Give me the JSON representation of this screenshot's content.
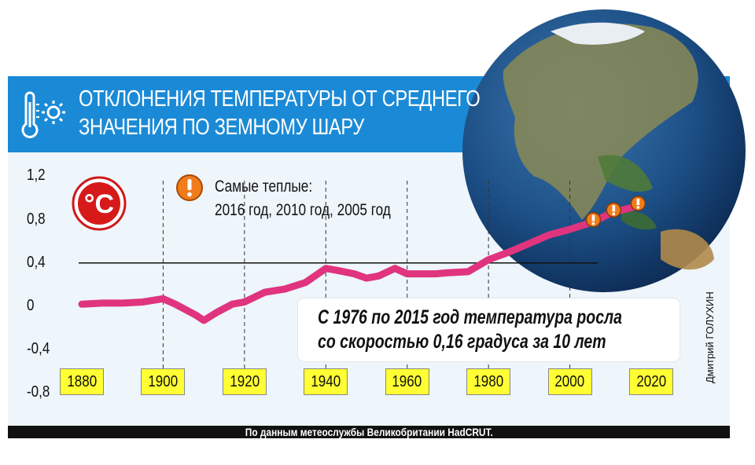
{
  "title_lines": [
    "ОТКЛОНЕНИЯ ТЕМПЕРАТУРЫ ОТ СРЕДНЕГО",
    "ЗНАЧЕНИЯ ПО ЗЕМНОМУ ШАРУ"
  ],
  "unit_badge": "°C",
  "warmest": {
    "title": "Самые теплые:",
    "years": "2016 год, 2010 год, 2005 год"
  },
  "callout": {
    "line1": "С 1976 по 2015 год температура росла",
    "line2": "со скоростью 0,16 градуса за 10 лет"
  },
  "footer": "По данным метеослужбы Великобритании HadCRUT.",
  "credit": "Дмитрий ГОЛУХИН",
  "colors": {
    "line": "#e0347f",
    "title_bar": "#1b8ad6",
    "tick_box": "#ffff33",
    "marker": "#f07c1c"
  },
  "icons": [
    "thermometer-icon",
    "sun-icon",
    "warning-icon",
    "globe-image"
  ],
  "chart_data": {
    "type": "line",
    "title": "ОТКЛОНЕНИЯ ТЕМПЕРАТУРЫ ОТ СРЕДНЕГО ЗНАЧЕНИЯ ПО ЗЕМНОМУ ШАРУ",
    "ylabel": "°C",
    "ylim": [
      -0.8,
      1.2
    ],
    "yticks": [
      "1,2",
      "0,8",
      "0,4",
      "0",
      "-0,4",
      "-0,8"
    ],
    "ytick_values": [
      1.2,
      0.8,
      0.4,
      0,
      -0.4,
      -0.8
    ],
    "xlim": [
      1880,
      2020
    ],
    "xticks": [
      "1880",
      "1900",
      "1920",
      "1940",
      "1960",
      "1980",
      "2000",
      "2020"
    ],
    "xtick_values": [
      1880,
      1900,
      1920,
      1940,
      1960,
      1980,
      2000,
      2020
    ],
    "grid_years": [
      1900,
      1920,
      1940,
      1960,
      1980,
      2000
    ],
    "reference_line": 0.4,
    "series": [
      {
        "x": [
          1880,
          1885,
          1890,
          1895,
          1900,
          1903,
          1908,
          1910,
          1913,
          1917,
          1920,
          1925,
          1930,
          1935,
          1940,
          1943,
          1947,
          1950,
          1953,
          1957,
          1960,
          1963,
          1967,
          1970,
          1975,
          1980,
          1985,
          1990,
          1995,
          2000,
          2005,
          2008,
          2010,
          2013,
          2016
        ],
        "y": [
          0.02,
          0.03,
          0.03,
          0.04,
          0.07,
          0.02,
          -0.08,
          -0.13,
          -0.06,
          0.02,
          0.04,
          0.13,
          0.16,
          0.22,
          0.35,
          0.33,
          0.3,
          0.26,
          0.28,
          0.35,
          0.3,
          0.3,
          0.3,
          0.31,
          0.32,
          0.43,
          0.5,
          0.58,
          0.66,
          0.71,
          0.77,
          0.82,
          0.86,
          0.89,
          0.92
        ]
      }
    ],
    "markers": [
      2005,
      2010,
      2016
    ]
  }
}
